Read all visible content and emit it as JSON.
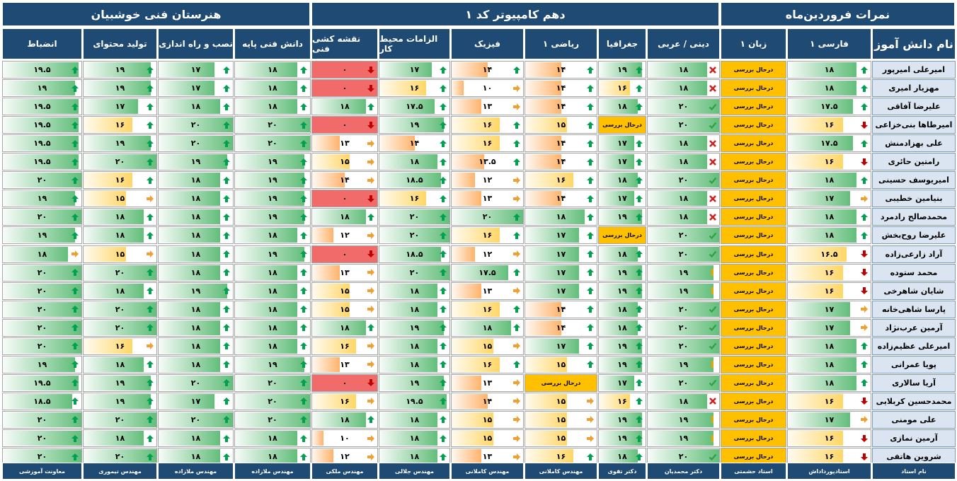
{
  "banners": {
    "tech_school": "هنرستان فنی خوشبیان",
    "class_name": "دهم کامپیوتر کد ۱",
    "grades_title": "نمرات فروردین‌ماه"
  },
  "columns": [
    {
      "key": "name",
      "label": "نام دانش آموز"
    },
    {
      "key": "farsi",
      "label": "فارسی ۱"
    },
    {
      "key": "english",
      "label": "زبان ۱"
    },
    {
      "key": "religion",
      "label": "دینی / عربی"
    },
    {
      "key": "geo",
      "label": "جغرافیا"
    },
    {
      "key": "math",
      "label": "ریاضی ۱"
    },
    {
      "key": "physics",
      "label": "فیزیک"
    },
    {
      "key": "workenv",
      "label": "الزامات محیط کار"
    },
    {
      "key": "drawing",
      "label": "نقشه کشی فنی"
    },
    {
      "key": "basic",
      "label": "دانش فنی پایه"
    },
    {
      "key": "install",
      "label": "نصب و راه اندازی"
    },
    {
      "key": "content",
      "label": "تولید محتوای"
    },
    {
      "key": "discipline",
      "label": "انضباط"
    }
  ],
  "status_text": "درحال بررسی",
  "students": [
    {
      "name": "امیرعلی امیرپور",
      "scores": [
        "۱۸",
        null,
        "۱۸",
        "۱۹",
        "۱۴",
        "۱۴",
        "۱۷",
        "۰",
        "۱۸",
        "۱۷",
        "۱۹",
        "۱۹.۵"
      ],
      "icons": [
        "up",
        null,
        "x",
        "up",
        "up",
        "up",
        "up",
        "down",
        "up",
        "up",
        "up",
        "up"
      ]
    },
    {
      "name": "مهزیار امیری",
      "scores": [
        "۱۸",
        null,
        "۱۸",
        "۱۶",
        "۱۴",
        "۱۰",
        "۱۶",
        "۰",
        "۱۸",
        "۱۷",
        "۱۹",
        "۱۹"
      ],
      "icons": [
        "up",
        null,
        "x",
        "up",
        "up",
        "right",
        "up",
        "down",
        "up",
        "up",
        "up",
        "up"
      ]
    },
    {
      "name": "علیرضا آفاقی",
      "scores": [
        "۱۷.۵",
        null,
        "۲۰",
        "۱۸",
        "۱۴",
        "۱۳",
        "۱۷.۵",
        "۱۸",
        "۱۸",
        "۱۸",
        "۱۷",
        "۱۹.۵"
      ],
      "icons": [
        "up",
        null,
        "check",
        "up",
        "up",
        "right",
        "up",
        "up",
        "up",
        "up",
        "up",
        "up"
      ]
    },
    {
      "name": "امیرطاها بنی‌خزاعی",
      "scores": [
        "۱۶",
        null,
        "۲۰",
        null,
        "۱۵",
        "۱۶",
        "۱۹",
        "۰",
        "۲۰",
        "۲۰",
        "۱۶",
        "۱۹.۵"
      ],
      "icons": [
        "down",
        null,
        "check",
        null,
        "up",
        "up",
        "up",
        "down",
        "up",
        "up",
        "up",
        "up"
      ]
    },
    {
      "name": "علی بهزادمنش",
      "scores": [
        "۱۷.۵",
        null,
        "۱۸",
        "۱۷",
        "۱۴",
        "۱۶",
        "۱۴",
        "۱۳",
        "۲۰",
        "۲۰",
        "۱۹",
        "۱۹.۵"
      ],
      "icons": [
        "up",
        null,
        "x",
        "up",
        "up",
        "up",
        "up",
        "right",
        "up",
        "up",
        "up",
        "up"
      ]
    },
    {
      "name": "رامتین حائری",
      "scores": [
        "۱۶",
        null,
        "۱۸",
        "۱۷",
        "۱۴",
        "۱۳.۵",
        "۱۸",
        "۱۵",
        "۱۹",
        "۱۹",
        "۲۰",
        "۱۹.۵"
      ],
      "icons": [
        "down",
        null,
        "x",
        "up",
        "up",
        "up",
        "up",
        "right",
        "up",
        "up",
        "up",
        "up"
      ]
    },
    {
      "name": "امیریوسف حسینی",
      "scores": [
        "۱۸",
        null,
        "۲۰",
        "۱۸",
        "۱۶",
        "۱۲",
        "۱۸.۵",
        "۱۴",
        "۱۹",
        "۱۸",
        "۱۶",
        "۲۰"
      ],
      "icons": [
        "up",
        null,
        "check",
        "up",
        "up",
        "right",
        "up",
        "right",
        "up",
        "up",
        "up",
        "up"
      ]
    },
    {
      "name": "بنیامین خطیبی",
      "scores": [
        "۱۷",
        null,
        "۱۸",
        "۱۷",
        "۱۴",
        "۱۳",
        "۱۶",
        "۰",
        "۱۹",
        "۱۸",
        "۱۵",
        "۱۹"
      ],
      "icons": [
        "right",
        null,
        "x",
        "up",
        "up",
        "right",
        "up",
        "down",
        "up",
        "up",
        "right",
        "up"
      ]
    },
    {
      "name": "محمدصالح رادمرد",
      "scores": [
        "۱۸",
        null,
        "۱۸",
        "۱۹",
        "۱۸",
        "۲۰",
        "۲۰",
        "۱۸",
        "۱۹",
        "۱۸",
        "۱۸",
        "۲۰"
      ],
      "icons": [
        "up",
        null,
        "x",
        "up",
        "up",
        "up",
        "up",
        "up",
        "up",
        "up",
        "up",
        "up"
      ]
    },
    {
      "name": "علیرضا روح‌بخش",
      "scores": [
        "۱۸",
        null,
        "۲۰",
        null,
        "۱۷",
        "۱۶",
        "۲۰",
        "۱۲",
        "۱۸",
        "۱۸",
        "۱۸",
        "۱۹"
      ],
      "icons": [
        "up",
        null,
        "check",
        null,
        "up",
        "up",
        "up",
        "right",
        "up",
        "up",
        "up",
        "up"
      ]
    },
    {
      "name": "آراد زارعی‌زاده",
      "scores": [
        "۱۶.۵",
        null,
        "۲۰",
        "۱۸",
        "۱۷",
        "۱۲",
        "۱۸.۵",
        "۰",
        "۱۹",
        "۱۸",
        "۱۵",
        "۱۸"
      ],
      "icons": [
        "down",
        null,
        "check",
        "up",
        "up",
        "right",
        "up",
        "down",
        "up",
        "up",
        "right",
        "right"
      ]
    },
    {
      "name": "محمد ستوده",
      "scores": [
        "۱۶",
        null,
        "۱۹",
        "۱۹",
        "۱۷",
        "۱۷.۵",
        "۲۰",
        "۱۳",
        "۱۸",
        "۱۸",
        "۲۰",
        "۲۰"
      ],
      "icons": [
        "down",
        null,
        "mid",
        "up",
        "up",
        "up",
        "up",
        "right",
        "up",
        "up",
        "up",
        "up"
      ]
    },
    {
      "name": "شایان شاهرخی",
      "scores": [
        "۱۶",
        null,
        "۱۹",
        "۱۹",
        "۱۷",
        "۱۳",
        "۱۸",
        "۱۵",
        "۱۸",
        "۱۹",
        "۱۸",
        "۲۰"
      ],
      "icons": [
        "down",
        null,
        "mid",
        "up",
        "up",
        "right",
        "up",
        "right",
        "up",
        "up",
        "up",
        "up"
      ]
    },
    {
      "name": "پارسا شاهی‌خانه",
      "scores": [
        "۱۷",
        null,
        "۲۰",
        "۱۸",
        "۱۴",
        "۱۶",
        "۱۸",
        "۱۵",
        "۱۸",
        "۱۸",
        "۲۰",
        "۲۰"
      ],
      "icons": [
        "right",
        null,
        "check",
        "up",
        "up",
        "up",
        "up",
        "right",
        "up",
        "up",
        "up",
        "up"
      ]
    },
    {
      "name": "آرمین عرب‌نژاد",
      "scores": [
        "۱۷",
        null,
        "۲۰",
        "۱۸",
        "۱۴",
        "۱۸",
        "۱۹",
        "۱۸",
        "۱۸",
        "۱۸",
        "۲۰",
        "۲۰"
      ],
      "icons": [
        "right",
        null,
        "check",
        "up",
        "up",
        "up",
        "up",
        "up",
        "up",
        "up",
        "up",
        "up"
      ]
    },
    {
      "name": "امیرعلی عظیم‌زاده",
      "scores": [
        "۱۸",
        null,
        "۲۰",
        "۱۹",
        "۱۷",
        "۱۵",
        "۱۸",
        "۱۶",
        "۱۸",
        "۱۸",
        "۱۶",
        "۲۰"
      ],
      "icons": [
        "up",
        null,
        "check",
        "up",
        "up",
        "right",
        "up",
        "right",
        "up",
        "up",
        "right",
        "up"
      ]
    },
    {
      "name": "پویا عمرانی",
      "scores": [
        "۱۸",
        null,
        "۱۹",
        "۱۹",
        "۱۵",
        "۱۶",
        "۱۸",
        "۱۳",
        "۱۹",
        "۱۸",
        "۱۸",
        "۱۹"
      ],
      "icons": [
        "up",
        null,
        "mid",
        "up",
        "up",
        "up",
        "up",
        "right",
        "up",
        "up",
        "up",
        "up"
      ]
    },
    {
      "name": "آریا سالاری",
      "scores": [
        "۱۸",
        null,
        "۲۰",
        "۱۷",
        null,
        "۱۳",
        "۱۹",
        "۰",
        "۲۰",
        "۲۰",
        "۱۹",
        "۱۹.۵"
      ],
      "icons": [
        "up",
        null,
        "check",
        "up",
        null,
        "right",
        "up",
        "down",
        "up",
        "up",
        "up",
        "up"
      ]
    },
    {
      "name": "محمدحسین کربلایی",
      "scores": [
        "۱۶",
        null,
        "۱۸",
        "۱۶",
        "۱۵",
        "۱۴",
        "۱۹.۵",
        "۱۶",
        "۲۰",
        "۱۷",
        "۱۹",
        "۱۸.۵"
      ],
      "icons": [
        "down",
        null,
        "x",
        "up",
        "right",
        "right",
        "up",
        "right",
        "up",
        "up",
        "up",
        "up"
      ]
    },
    {
      "name": "علی مومنی",
      "scores": [
        "۱۷",
        null,
        "۱۹",
        "۱۹",
        "۱۵",
        "۱۵",
        "۱۸",
        "۱۸",
        "۲۰",
        "۲۰",
        "۲۰",
        "۲۰"
      ],
      "icons": [
        "right",
        null,
        "mid",
        "up",
        "right",
        "right",
        "up",
        "up",
        "up",
        "up",
        "up",
        "up"
      ]
    },
    {
      "name": "آرمین نمازی",
      "scores": [
        "۱۶",
        null,
        "۱۹",
        "۱۹",
        "۱۵",
        "۱۵",
        "۱۸",
        "۱۰",
        "۱۸",
        "۱۸",
        "۱۸",
        "۲۰"
      ],
      "icons": [
        "down",
        null,
        "mid",
        "up",
        "right",
        "right",
        "up",
        "right",
        "up",
        "up",
        "up",
        "up"
      ]
    },
    {
      "name": "شروین هاتفی",
      "scores": [
        "۱۶",
        null,
        "۲۰",
        "۱۸",
        "۱۶",
        "۱۳",
        "۱۸",
        "۱۲",
        "۱۸",
        "۱۸",
        "۲۰",
        "۲۰"
      ],
      "icons": [
        "down",
        null,
        "check",
        "up",
        "up",
        "right",
        "up",
        "right",
        "up",
        "up",
        "up",
        "up"
      ]
    }
  ],
  "teachers": [
    "نام استاد",
    "استادپورداداش",
    "استاد حشمتی",
    "دکتر محمدیان",
    "دکتر تقوی",
    "مهندس کاملانی",
    "مهندس کاملانی",
    "مهندس جلالی",
    "مهندس ملکی",
    "مهندس ملازاده",
    "مهندس ملازاده",
    "مهندس تیموری",
    "معاونت آموزشی"
  ],
  "colors": {
    "header": "#1f4a73",
    "status": "#ffc000",
    "zero": "#f16b6b",
    "good": "#63be7b"
  }
}
